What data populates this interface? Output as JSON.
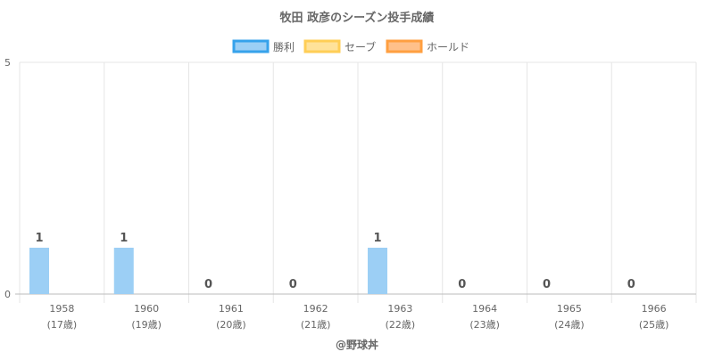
{
  "chart_data": {
    "type": "bar",
    "title": "牧田 政彦のシーズン投手成績",
    "categories": [
      "1958",
      "1960",
      "1961",
      "1962",
      "1963",
      "1964",
      "1965",
      "1966"
    ],
    "sublabels": [
      "(17歳)",
      "(19歳)",
      "(20歳)",
      "(21歳)",
      "(22歳)",
      "(23歳)",
      "(24歳)",
      "(25歳)"
    ],
    "series": [
      {
        "name": "勝利",
        "values": [
          1,
          1,
          0,
          0,
          1,
          0,
          0,
          0
        ],
        "color": "#9ccff5",
        "border": "#36a2eb"
      },
      {
        "name": "セーブ",
        "values": [
          null,
          null,
          null,
          null,
          null,
          null,
          null,
          null
        ],
        "color": "#ffe29a",
        "border": "#ffce56"
      },
      {
        "name": "ホールド",
        "values": [
          null,
          null,
          null,
          null,
          null,
          null,
          null,
          null
        ],
        "color": "#ffc08a",
        "border": "#ff9f40"
      }
    ],
    "ylim": [
      0,
      5
    ],
    "yticks": [
      "0",
      "5"
    ],
    "grid": true,
    "legend": "top",
    "footer": "@野球丼"
  }
}
